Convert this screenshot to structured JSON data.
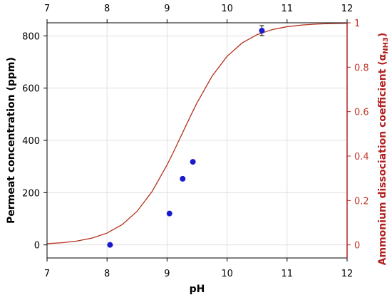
{
  "colors": {
    "points": "#1a1acc",
    "curve": "#b5301c",
    "right_axis": "#b22222",
    "grid": "#e0e0e0"
  },
  "chart_data": {
    "type": "scatter",
    "xlabel": "pH",
    "ylabel": "Permeat concentration (ppm)",
    "y2label_main": "Ammonium dissociation coefficient (α",
    "y2label_sub": "NH3",
    "y2label_end": ")",
    "xlim": [
      7,
      12
    ],
    "ylim": [
      -50,
      850
    ],
    "y2lim": [
      -0.0588,
      1
    ],
    "x_ticks": [
      "7",
      "8",
      "9",
      "10",
      "11",
      "12"
    ],
    "y_ticks": [
      "0",
      "200",
      "400",
      "600",
      "800"
    ],
    "y2_ticks": [
      "0",
      "0.2",
      "0.4",
      "0.6",
      "0.8",
      "1"
    ],
    "grid": true,
    "series": [
      {
        "type": "scatter",
        "axis": "left",
        "x": [
          8.05,
          9.04,
          9.26,
          9.43,
          10.58
        ],
        "y": [
          0,
          120,
          253,
          318,
          820
        ]
      },
      {
        "type": "line",
        "axis": "right",
        "pKa": 9.25,
        "x": [
          7.0,
          7.25,
          7.5,
          7.75,
          8.0,
          8.25,
          8.5,
          8.75,
          9.0,
          9.1,
          9.25,
          9.4,
          9.5,
          9.75,
          10.0,
          10.25,
          10.5,
          10.75,
          11.0,
          11.25,
          11.5,
          11.75,
          12.0
        ],
        "y": [
          0.0056,
          0.0099,
          0.0175,
          0.0307,
          0.0532,
          0.0909,
          0.151,
          0.2403,
          0.3599,
          0.4145,
          0.5,
          0.5855,
          0.6401,
          0.7597,
          0.849,
          0.9091,
          0.9468,
          0.9693,
          0.9825,
          0.9901,
          0.9944,
          0.9968,
          0.9982
        ]
      }
    ]
  }
}
